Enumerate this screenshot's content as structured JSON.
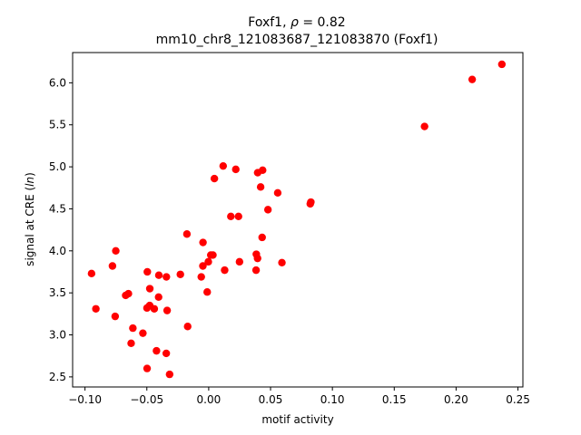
{
  "chart_data": {
    "type": "scatter",
    "title_line1_prefix": "Foxf1, ",
    "title_line1_symbol": "ρ",
    "title_line1_suffix": " = 0.82",
    "title_line2": "mm10_chr8_121083687_121083870 (Foxf1)",
    "xlabel": "motif activity",
    "ylabel_prefix": "signal at CRE (",
    "ylabel_italic": "ln",
    "ylabel_suffix": ")",
    "xlim": [
      -0.11,
      0.254
    ],
    "ylim": [
      2.38,
      6.36
    ],
    "xticks": [
      -0.1,
      -0.05,
      0.0,
      0.05,
      0.1,
      0.15,
      0.2,
      0.25
    ],
    "xtick_labels": [
      "−0.10",
      "−0.05",
      "0.00",
      "0.05",
      "0.10",
      "0.15",
      "0.20",
      "0.25"
    ],
    "yticks": [
      2.5,
      3.0,
      3.5,
      4.0,
      4.5,
      5.0,
      5.5,
      6.0
    ],
    "ytick_labels": [
      "2.5",
      "3.0",
      "3.5",
      "4.0",
      "4.5",
      "5.0",
      "5.5",
      "6.0"
    ],
    "grid": false,
    "marker_color": "#ff0000",
    "points": [
      [
        -0.0947,
        3.73
      ],
      [
        -0.0912,
        3.31
      ],
      [
        -0.0778,
        3.82
      ],
      [
        -0.0751,
        4.0
      ],
      [
        -0.0756,
        3.22
      ],
      [
        -0.0671,
        3.47
      ],
      [
        -0.0649,
        3.49
      ],
      [
        -0.0613,
        3.08
      ],
      [
        -0.0627,
        2.9
      ],
      [
        -0.0532,
        3.02
      ],
      [
        -0.0496,
        3.75
      ],
      [
        -0.0499,
        3.32
      ],
      [
        -0.0477,
        3.35
      ],
      [
        -0.0476,
        3.55
      ],
      [
        -0.044,
        3.31
      ],
      [
        -0.0422,
        2.81
      ],
      [
        -0.0403,
        3.71
      ],
      [
        -0.0405,
        3.45
      ],
      [
        -0.0498,
        2.6
      ],
      [
        -0.0342,
        3.69
      ],
      [
        -0.0336,
        3.29
      ],
      [
        -0.0343,
        2.78
      ],
      [
        -0.0316,
        2.53
      ],
      [
        -0.0229,
        3.72
      ],
      [
        -0.0176,
        4.2
      ],
      [
        -0.017,
        3.1
      ],
      [
        -0.006,
        3.69
      ],
      [
        -0.0047,
        3.82
      ],
      [
        -0.0046,
        4.1
      ],
      [
        -0.0003,
        3.87
      ],
      [
        -0.0012,
        3.51
      ],
      [
        0.0017,
        3.95
      ],
      [
        0.0034,
        3.95
      ],
      [
        0.0046,
        4.86
      ],
      [
        0.0117,
        5.01
      ],
      [
        0.0129,
        3.77
      ],
      [
        0.0179,
        4.41
      ],
      [
        0.0219,
        4.97
      ],
      [
        0.0249,
        3.87
      ],
      [
        0.0241,
        4.41
      ],
      [
        0.0383,
        3.77
      ],
      [
        0.0385,
        3.96
      ],
      [
        0.0395,
        3.91
      ],
      [
        0.0396,
        4.93
      ],
      [
        0.042,
        4.76
      ],
      [
        0.0436,
        4.96
      ],
      [
        0.0432,
        4.16
      ],
      [
        0.0479,
        4.49
      ],
      [
        0.0558,
        4.69
      ],
      [
        0.0592,
        3.86
      ],
      [
        0.0821,
        4.56
      ],
      [
        0.0826,
        4.58
      ],
      [
        0.1745,
        5.48
      ],
      [
        0.213,
        6.04
      ],
      [
        0.237,
        6.22
      ]
    ]
  }
}
